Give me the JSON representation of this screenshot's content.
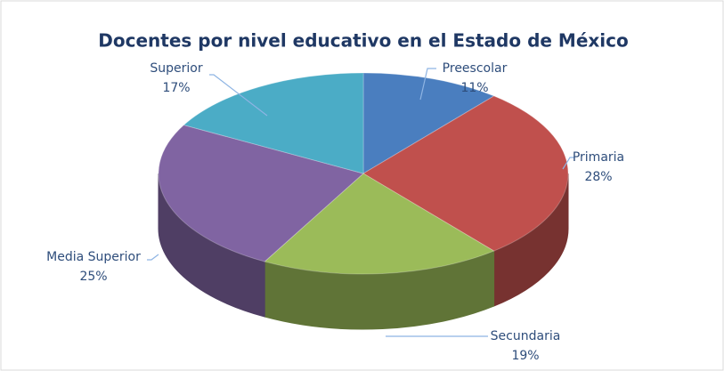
{
  "chart_data": {
    "type": "pie3d",
    "title": "Docentes por nivel educativo en el Estado de México",
    "categories": [
      "Preescolar",
      "Primaria",
      "Secundaria",
      "Media Superior",
      "Superior"
    ],
    "values": [
      11,
      28,
      19,
      25,
      17
    ],
    "value_labels": [
      "11%",
      "28%",
      "19%",
      "25%",
      "17%"
    ],
    "colors": [
      "#4a7ebf",
      "#c0504d",
      "#9bbb59",
      "#8064a2",
      "#4bacc6"
    ]
  }
}
